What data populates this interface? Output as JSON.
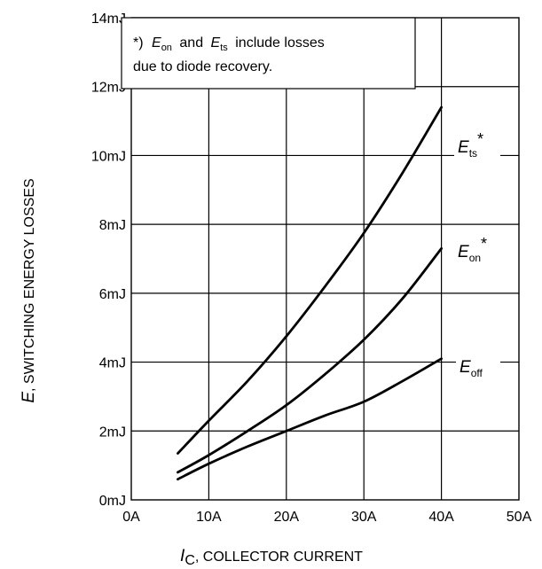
{
  "chart_data": {
    "type": "line",
    "xlabel": {
      "symbol": "I",
      "subscript": "C",
      "text": ", COLLECTOR CURRENT"
    },
    "ylabel": {
      "symbol": "E",
      "text": ", SWITCHING ENERGY LOSSES"
    },
    "xlim": [
      0,
      50
    ],
    "ylim": [
      0,
      14
    ],
    "x_unit": "A",
    "y_unit": "mJ",
    "x_ticks": [
      0,
      10,
      20,
      30,
      40,
      50
    ],
    "y_ticks": [
      0,
      2,
      4,
      6,
      8,
      10,
      12,
      14
    ],
    "x_tick_labels": [
      "0A",
      "10A",
      "20A",
      "30A",
      "40A",
      "50A"
    ],
    "y_tick_labels": [
      "0mJ",
      "2mJ",
      "4mJ",
      "6mJ",
      "8mJ",
      "10mJ",
      "12mJ",
      "14mJ"
    ],
    "grid": true,
    "legend": "none",
    "series": [
      {
        "name": "Ets*",
        "label": {
          "symbol": "E",
          "subscript": "ts",
          "suffix": "*"
        },
        "x": [
          6,
          10,
          15,
          20,
          25,
          30,
          35,
          40
        ],
        "y": [
          1.35,
          2.3,
          3.45,
          4.75,
          6.2,
          7.75,
          9.5,
          11.4
        ]
      },
      {
        "name": "Eon*",
        "label": {
          "symbol": "E",
          "subscript": "on",
          "suffix": "*"
        },
        "x": [
          6,
          10,
          15,
          20,
          25,
          30,
          35,
          40
        ],
        "y": [
          0.8,
          1.3,
          2.0,
          2.75,
          3.65,
          4.65,
          5.85,
          7.3
        ]
      },
      {
        "name": "Eoff",
        "label": {
          "symbol": "E",
          "subscript": "off",
          "suffix": ""
        },
        "x": [
          6,
          10,
          15,
          20,
          25,
          30,
          35,
          40
        ],
        "y": [
          0.6,
          1.05,
          1.55,
          2.0,
          2.45,
          2.85,
          3.45,
          4.1
        ]
      }
    ],
    "annotation": {
      "prefix": "*)",
      "sym1": "E",
      "sub1": "on",
      "and_text": "and",
      "sym2": "E",
      "sub2": "ts",
      "line1_rest": "include losses",
      "line2": "due to diode recovery."
    }
  }
}
